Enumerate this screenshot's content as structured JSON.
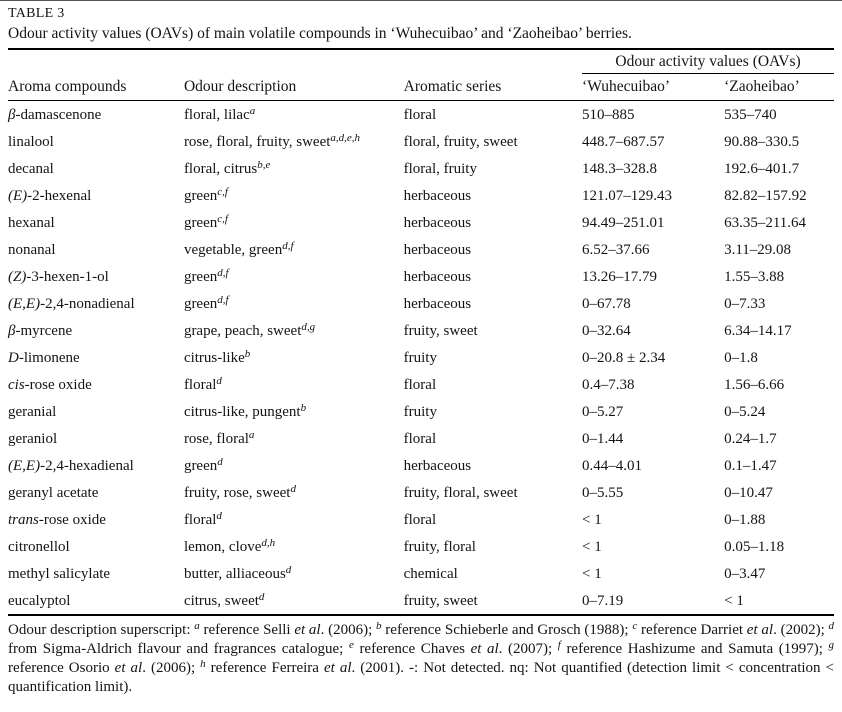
{
  "page": {
    "label": "TABLE 3",
    "caption": "Odour activity values (OAVs) of main volatile compounds in ‘Wuhecuibao’ and ‘Zaoheibao’ berries."
  },
  "table": {
    "span_header": "Odour activity values (OAVs)",
    "columns": [
      "Aroma compounds",
      "Odour description",
      "Aromatic series",
      "‘Wuhecuibao’",
      "‘Zaoheibao’"
    ],
    "rows": [
      {
        "compound_italic": "β",
        "compound_text": "-damascenone",
        "description": "floral, lilac",
        "description_sup": "a",
        "series": "floral",
        "wuhecuibao": "510–885",
        "zaoheibao": "535–740"
      },
      {
        "compound_italic": "",
        "compound_text": "linalool",
        "description": "rose, floral, fruity, sweet",
        "description_sup": "a,d,e,h",
        "series": "floral, fruity, sweet",
        "wuhecuibao": "448.7–687.57",
        "zaoheibao": "90.88–330.5"
      },
      {
        "compound_italic": "",
        "compound_text": "decanal",
        "description": "floral, citrus",
        "description_sup": "b,e",
        "series": "floral, fruity",
        "wuhecuibao": "148.3–328.8",
        "zaoheibao": "192.6–401.7"
      },
      {
        "compound_italic": "(E)",
        "compound_text": "-2-hexenal",
        "description": "green",
        "description_sup": "c,f",
        "series": "herbaceous",
        "wuhecuibao": "121.07–129.43",
        "zaoheibao": "82.82–157.92"
      },
      {
        "compound_italic": "",
        "compound_text": "hexanal",
        "description": "green",
        "description_sup": "c,f",
        "series": "herbaceous",
        "wuhecuibao": "94.49–251.01",
        "zaoheibao": "63.35–211.64"
      },
      {
        "compound_italic": "",
        "compound_text": "nonanal",
        "description": "vegetable, green",
        "description_sup": "d,f",
        "series": "herbaceous",
        "wuhecuibao": "6.52–37.66",
        "zaoheibao": "3.11–29.08"
      },
      {
        "compound_italic": "(Z)",
        "compound_text": "-3-hexen-1-ol",
        "description": "green",
        "description_sup": "d,f",
        "series": "herbaceous",
        "wuhecuibao": "13.26–17.79",
        "zaoheibao": "1.55–3.88"
      },
      {
        "compound_italic": "(E,E)",
        "compound_text": "-2,4-nonadienal",
        "description": "green",
        "description_sup": "d,f",
        "series": "herbaceous",
        "wuhecuibao": "0–67.78",
        "zaoheibao": "0–7.33"
      },
      {
        "compound_italic": "β",
        "compound_text": "-myrcene",
        "description": "grape, peach, sweet",
        "description_sup": "d,g",
        "series": "fruity, sweet",
        "wuhecuibao": "0–32.64",
        "zaoheibao": "6.34–14.17"
      },
      {
        "compound_italic": "D",
        "compound_text": "-limonene",
        "description": "citrus-like",
        "description_sup": "b",
        "series": "fruity",
        "wuhecuibao": "0–20.8 ± 2.34",
        "zaoheibao": "0–1.8"
      },
      {
        "compound_italic": "cis",
        "compound_text": "-rose oxide",
        "description": "floral",
        "description_sup": "d",
        "series": "floral",
        "wuhecuibao": "0.4–7.38",
        "zaoheibao": "1.56–6.66"
      },
      {
        "compound_italic": "",
        "compound_text": "geranial",
        "description": "citrus-like, pungent",
        "description_sup": "b",
        "series": "fruity",
        "wuhecuibao": "0–5.27",
        "zaoheibao": "0–5.24"
      },
      {
        "compound_italic": "",
        "compound_text": "geraniol",
        "description": "rose, floral",
        "description_sup": "a",
        "series": "floral",
        "wuhecuibao": "0–1.44",
        "zaoheibao": "0.24–1.7"
      },
      {
        "compound_italic": "(E,E)",
        "compound_text": "-2,4-hexadienal",
        "description": "green",
        "description_sup": "d",
        "series": "herbaceous",
        "wuhecuibao": "0.44–4.01",
        "zaoheibao": "0.1–1.47"
      },
      {
        "compound_italic": "",
        "compound_text": "geranyl acetate",
        "description": "fruity, rose, sweet",
        "description_sup": "d",
        "series": "fruity, floral, sweet",
        "wuhecuibao": "0–5.55",
        "zaoheibao": "0–10.47"
      },
      {
        "compound_italic": "trans",
        "compound_text": "-rose oxide",
        "description": "floral",
        "description_sup": "d",
        "series": "floral",
        "wuhecuibao": "< 1",
        "zaoheibao": "0–1.88"
      },
      {
        "compound_italic": "",
        "compound_text": "citronellol",
        "description": "lemon, clove",
        "description_sup": "d,h",
        "series": "fruity, floral",
        "wuhecuibao": "< 1",
        "zaoheibao": "0.05–1.18"
      },
      {
        "compound_italic": "",
        "compound_text": "methyl salicylate",
        "description": "butter, alliaceous",
        "description_sup": "d",
        "series": "chemical",
        "wuhecuibao": "< 1",
        "zaoheibao": "0–3.47"
      },
      {
        "compound_italic": "",
        "compound_text": "eucalyptol",
        "description": "citrus, sweet",
        "description_sup": "d",
        "series": "fruity, sweet",
        "wuhecuibao": "0–7.19",
        "zaoheibao": "< 1"
      }
    ]
  },
  "footnote_segments": [
    {
      "t": "Odour description superscript: "
    },
    {
      "t": "a",
      "sup": true
    },
    {
      "t": " reference Selli "
    },
    {
      "t": "et al",
      "i": true
    },
    {
      "t": ". (2006); "
    },
    {
      "t": "b",
      "sup": true
    },
    {
      "t": " reference Schieberle and Grosch (1988); "
    },
    {
      "t": "c",
      "sup": true
    },
    {
      "t": " reference Darriet "
    },
    {
      "t": "et al",
      "i": true
    },
    {
      "t": ". (2002); "
    },
    {
      "t": "d",
      "sup": true
    },
    {
      "t": " from Sigma-Aldrich flavour and fragrances catalogue; "
    },
    {
      "t": "e",
      "sup": true
    },
    {
      "t": " reference Chaves "
    },
    {
      "t": "et al",
      "i": true
    },
    {
      "t": ". (2007); "
    },
    {
      "t": "f",
      "sup": true
    },
    {
      "t": " reference Hashizume and Samuta (1997); "
    },
    {
      "t": "g",
      "sup": true
    },
    {
      "t": " reference Osorio "
    },
    {
      "t": "et al",
      "i": true
    },
    {
      "t": ". (2006); "
    },
    {
      "t": "h",
      "sup": true
    },
    {
      "t": " reference Ferreira "
    },
    {
      "t": "et al",
      "i": true
    },
    {
      "t": ". (2001). -: Not detected. nq: Not quantified (detection limit < concentration < quantification limit)."
    }
  ]
}
